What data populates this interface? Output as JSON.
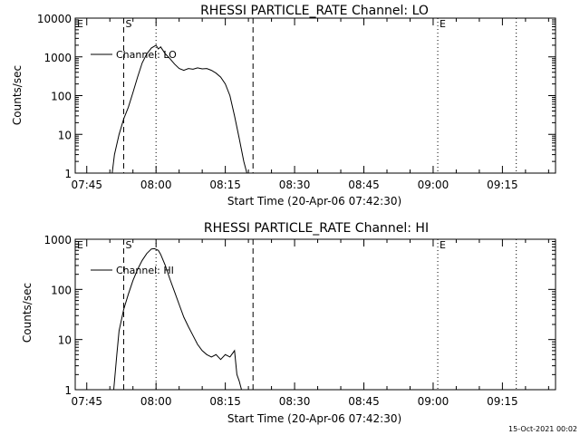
{
  "chart_data": [
    {
      "type": "line",
      "title": "RHESSI PARTICLE_RATE Channel: LO",
      "xlabel": "Start Time (20-Apr-06 07:42:30)",
      "ylabel": "Counts/sec",
      "y_scale": "log",
      "ylim": [
        1,
        10000
      ],
      "y_ticks": [
        1,
        10,
        100,
        1000,
        10000
      ],
      "y_tick_labels": [
        "1",
        "10",
        "100",
        "1000",
        "10000"
      ],
      "xlim": [
        "07:42:30",
        "09:26:30"
      ],
      "x_ticks": [
        "07:45",
        "08:00",
        "08:15",
        "08:30",
        "08:45",
        "09:00",
        "09:15"
      ],
      "legend": {
        "entries": [
          "Channel: LO"
        ],
        "placement": "top-left"
      },
      "markers": [
        {
          "label": "E",
          "time": "07:42:30",
          "style": "dotted"
        },
        {
          "label": "S",
          "time": "07:53",
          "style": "dashed"
        },
        {
          "label": "",
          "time": "08:00",
          "style": "dotted"
        },
        {
          "label": "",
          "time": "08:21",
          "style": "dashed"
        },
        {
          "label": "E",
          "time": "09:01",
          "style": "dotted"
        },
        {
          "label": "",
          "time": "09:18",
          "style": "dotted"
        }
      ],
      "series": [
        {
          "name": "Channel: LO",
          "x": [
            "07:50:30",
            "07:51:00",
            "07:52:00",
            "07:53:00",
            "07:54:00",
            "07:55:00",
            "07:56:00",
            "07:57:00",
            "07:58:00",
            "07:59:00",
            "08:00:00",
            "08:00:30",
            "08:01:00",
            "08:02:00",
            "08:03:00",
            "08:04:00",
            "08:05:00",
            "08:06:00",
            "08:07:00",
            "08:08:00",
            "08:09:00",
            "08:10:00",
            "08:11:00",
            "08:12:00",
            "08:13:00",
            "08:14:00",
            "08:15:00",
            "08:16:00",
            "08:17:00",
            "08:18:00",
            "08:19:00",
            "08:19:40"
          ],
          "values": [
            1,
            3,
            10,
            25,
            50,
            120,
            300,
            700,
            1200,
            1700,
            2000,
            1600,
            1800,
            1200,
            900,
            650,
            500,
            450,
            500,
            480,
            520,
            490,
            500,
            450,
            380,
            300,
            200,
            100,
            30,
            8,
            2,
            1
          ]
        }
      ]
    },
    {
      "type": "line",
      "title": "RHESSI PARTICLE_RATE Channel: HI",
      "xlabel": "Start Time (20-Apr-06 07:42:30)",
      "ylabel": "Counts/sec",
      "y_scale": "log",
      "ylim": [
        1,
        1000
      ],
      "y_ticks": [
        1,
        10,
        100,
        1000
      ],
      "y_tick_labels": [
        "1",
        "10",
        "100",
        "1000"
      ],
      "xlim": [
        "07:42:30",
        "09:26:30"
      ],
      "x_ticks": [
        "07:45",
        "08:00",
        "08:15",
        "08:30",
        "08:45",
        "09:00",
        "09:15"
      ],
      "legend": {
        "entries": [
          "Channel: HI"
        ],
        "placement": "top-left"
      },
      "markers": [
        {
          "label": "E",
          "time": "07:42:30",
          "style": "dotted"
        },
        {
          "label": "S",
          "time": "07:53",
          "style": "dashed"
        },
        {
          "label": "",
          "time": "08:00",
          "style": "dotted"
        },
        {
          "label": "",
          "time": "08:21",
          "style": "dashed"
        },
        {
          "label": "E",
          "time": "09:01",
          "style": "dotted"
        },
        {
          "label": "",
          "time": "09:18",
          "style": "dotted"
        }
      ],
      "series": [
        {
          "name": "Channel: HI",
          "x": [
            "07:50:50",
            "07:51:30",
            "07:52:00",
            "07:53:00",
            "07:54:00",
            "07:55:00",
            "07:56:00",
            "07:57:00",
            "07:58:00",
            "07:59:00",
            "07:59:40",
            "08:00:30",
            "08:01:00",
            "08:02:00",
            "08:03:00",
            "08:04:00",
            "08:05:00",
            "08:06:00",
            "08:07:00",
            "08:08:00",
            "08:09:00",
            "08:10:00",
            "08:11:00",
            "08:12:00",
            "08:13:00",
            "08:14:00",
            "08:15:00",
            "08:16:00",
            "08:17:00",
            "08:17:30",
            "08:18:00",
            "08:18:30"
          ],
          "values": [
            1,
            5,
            15,
            40,
            80,
            150,
            250,
            380,
            520,
            640,
            650,
            600,
            500,
            300,
            160,
            90,
            50,
            28,
            18,
            12,
            8,
            6,
            5,
            4.5,
            5,
            4,
            5,
            4.5,
            6,
            2,
            1.5,
            1
          ]
        }
      ]
    }
  ],
  "footer": {
    "date_stamp": "15-Oct-2021 00:02"
  }
}
